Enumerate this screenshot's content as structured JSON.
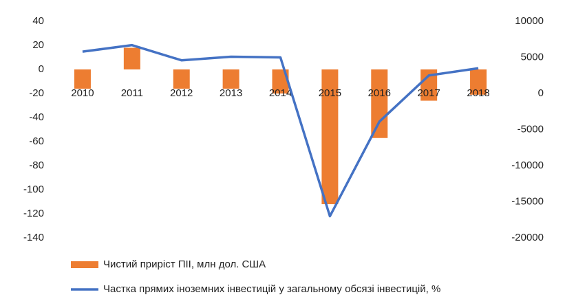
{
  "chart_data": {
    "type": "bar_line",
    "categories": [
      "2010",
      "2011",
      "2012",
      "2013",
      "2014",
      "2015",
      "2016",
      "2017",
      "2018"
    ],
    "series": [
      {
        "name": "Чистий приріст ПІІ, млн дол. США",
        "type": "bar",
        "color": "#ed7d31",
        "values": [
          -16,
          18,
          -16,
          -16,
          -20,
          -112,
          -57,
          -26,
          -21
        ]
      },
      {
        "name": "Частка прямих іноземних інвестицій  у загальному обсязі інвестицій, %",
        "type": "line",
        "axis": "y2",
        "color": "#4472c4",
        "values": [
          5800,
          6700,
          4600,
          5100,
          5000,
          -17000,
          -3900,
          2500,
          3500
        ]
      }
    ],
    "ylim": [
      -140,
      40
    ],
    "yticks": [
      -140,
      -120,
      -100,
      -80,
      -60,
      -40,
      -20,
      0,
      20,
      40
    ],
    "y2lim": [
      -20000,
      10000
    ],
    "y2ticks": [
      -20000,
      -15000,
      -10000,
      -5000,
      0,
      5000,
      10000
    ],
    "legend": "bottom"
  }
}
